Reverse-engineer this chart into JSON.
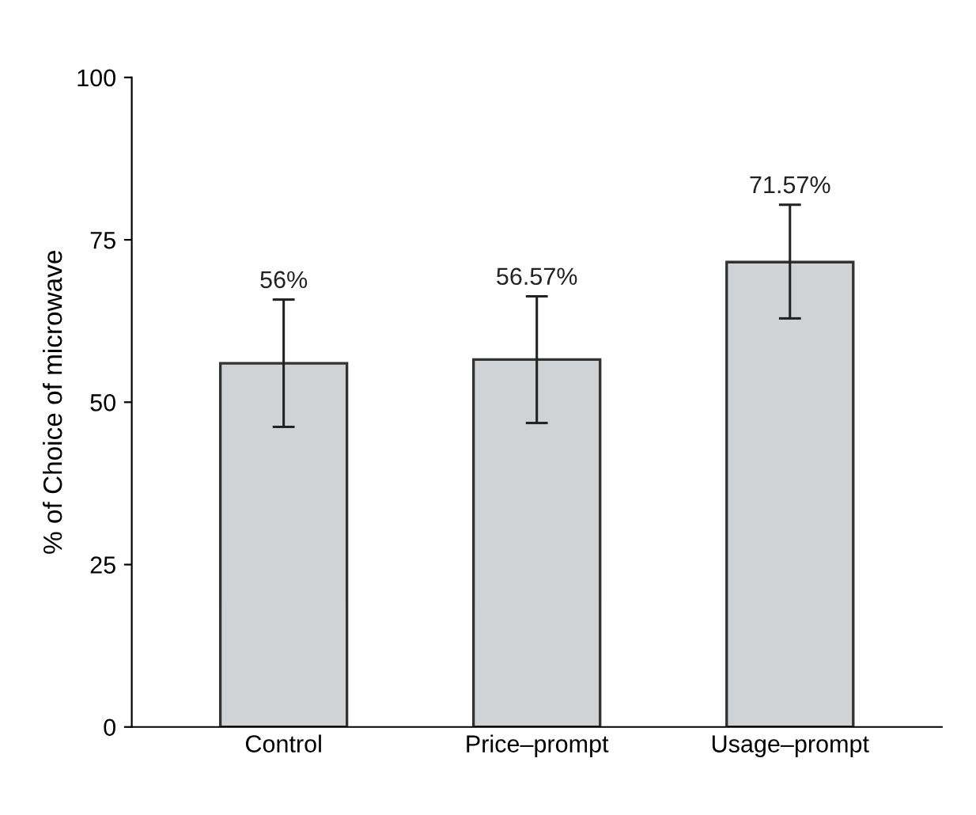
{
  "chart_data": {
    "type": "bar",
    "ylabel": "% of Choice of microwave",
    "categories": [
      "Control",
      "Price–prompt",
      "Usage–prompt"
    ],
    "values": [
      56,
      56.57,
      71.57
    ],
    "value_labels": [
      "56%",
      "56.57%",
      "71.57%"
    ],
    "errors": [
      [
        46.2,
        65.8
      ],
      [
        46.8,
        66.3
      ],
      [
        62.9,
        80.4
      ]
    ],
    "color": "#d1d2d4",
    "ylim": [
      0,
      100
    ],
    "yticks": [
      0,
      25,
      50,
      75,
      100
    ],
    "grid": false
  }
}
